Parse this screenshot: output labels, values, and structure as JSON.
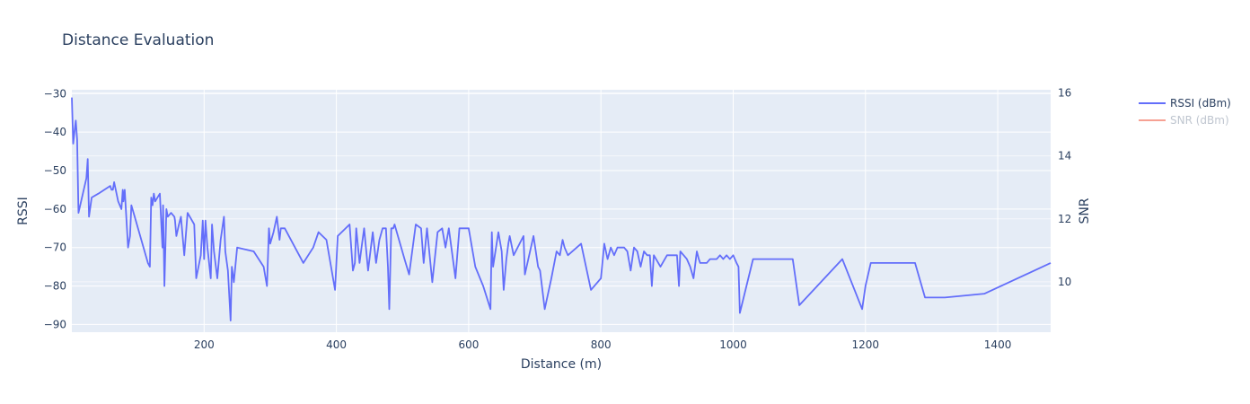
{
  "chart_data": {
    "type": "line",
    "title": "Distance Evaluation",
    "xlabel": "Distance (m)",
    "ylabel": "RSSI",
    "y2label": "SNR",
    "xlim": [
      0,
      1480
    ],
    "ylim": [
      -92,
      -29
    ],
    "y2lim": [
      8.4,
      16.1
    ],
    "xticks": [
      200,
      400,
      600,
      800,
      1000,
      1200,
      1400
    ],
    "yticks": [
      -30,
      -40,
      -50,
      -60,
      -70,
      -80,
      -90
    ],
    "y2ticks": [
      10,
      12,
      14,
      16
    ],
    "grid": true,
    "legend_position": "top-right",
    "series": [
      {
        "name": "RSSI (dBm)",
        "color": "#636efa",
        "visible": true,
        "axis": "y",
        "x": [
          0,
          2,
          4,
          6,
          8,
          10,
          22,
          24,
          26,
          30,
          40,
          58,
          60,
          62,
          64,
          70,
          75,
          77,
          78,
          80,
          85,
          88,
          90,
          95,
          115,
          118,
          120,
          122,
          124,
          126,
          133,
          137,
          138,
          140,
          143,
          145,
          150,
          155,
          156,
          158,
          162,
          165,
          170,
          175,
          185,
          188,
          195,
          198,
          200,
          202,
          205,
          210,
          212,
          215,
          220,
          225,
          230,
          232,
          236,
          240,
          242,
          245,
          250,
          275,
          290,
          295,
          298,
          300,
          305,
          310,
          314,
          316,
          322,
          350,
          365,
          373,
          385,
          398,
          402,
          420,
          425,
          428,
          430,
          435,
          438,
          442,
          448,
          455,
          460,
          465,
          470,
          475,
          478,
          480,
          483,
          486,
          488,
          503,
          510,
          520,
          528,
          532,
          537,
          545,
          553,
          560,
          565,
          570,
          580,
          586,
          600,
          610,
          622,
          633,
          635,
          637,
          645,
          650,
          653,
          657,
          660,
          662,
          668,
          683,
          685,
          698,
          705,
          708,
          715,
          725,
          733,
          738,
          742,
          745,
          750,
          770,
          785,
          800,
          805,
          810,
          815,
          820,
          825,
          830,
          835,
          840,
          845,
          850,
          855,
          860,
          865,
          870,
          874,
          877,
          880,
          890,
          900,
          915,
          918,
          920,
          925,
          930,
          935,
          940,
          945,
          948,
          950,
          955,
          960,
          965,
          970,
          975,
          980,
          985,
          990,
          995,
          1000,
          1005,
          1008,
          1010,
          1030,
          1090,
          1100,
          1165,
          1195,
          1200,
          1208,
          1275,
          1290,
          1320,
          1380,
          1480
        ],
        "values": [
          -31,
          -43,
          -40,
          -37,
          -42,
          -61,
          -52,
          -47,
          -62,
          -57,
          -56,
          -54,
          -55,
          -55,
          -53,
          -58,
          -60,
          -55,
          -58,
          -55,
          -70,
          -67,
          -59,
          -62,
          -74,
          -75,
          -57,
          -59,
          -56,
          -58,
          -56,
          -70,
          -59,
          -80,
          -60,
          -62,
          -61,
          -62,
          -63,
          -67,
          -64,
          -62,
          -72,
          -61,
          -64,
          -78,
          -72,
          -63,
          -73,
          -63,
          -70,
          -78,
          -64,
          -71,
          -78,
          -68,
          -62,
          -71,
          -76,
          -89,
          -75,
          -79,
          -70,
          -71,
          -75,
          -80,
          -65,
          -69,
          -66,
          -62,
          -68,
          -65,
          -65,
          -74,
          -70,
          -66,
          -68,
          -81,
          -67,
          -64,
          -76,
          -74,
          -65,
          -74,
          -70,
          -65,
          -76,
          -66,
          -74,
          -68,
          -65,
          -65,
          -75,
          -86,
          -65,
          -65,
          -64,
          -73,
          -77,
          -64,
          -65,
          -74,
          -65,
          -79,
          -66,
          -65,
          -70,
          -65,
          -78,
          -65,
          -65,
          -75,
          -80,
          -86,
          -66,
          -75,
          -66,
          -71,
          -81,
          -73,
          -69,
          -67,
          -72,
          -67,
          -77,
          -67,
          -75,
          -76,
          -86,
          -78,
          -71,
          -72,
          -68,
          -70,
          -72,
          -69,
          -81,
          -78,
          -69,
          -73,
          -70,
          -72,
          -70,
          -70,
          -70,
          -71,
          -76,
          -70,
          -71,
          -75,
          -71,
          -72,
          -72,
          -80,
          -72,
          -75,
          -72,
          -72,
          -80,
          -71,
          -72,
          -73,
          -75,
          -78,
          -71,
          -73,
          -74,
          -74,
          -74,
          -73,
          -73,
          -73,
          -72,
          -73,
          -72,
          -73,
          -72,
          -74,
          -75,
          -87,
          -73,
          -73,
          -85,
          -73,
          -86,
          -80,
          -74,
          -74,
          -83,
          -83,
          -82,
          -74
        ]
      },
      {
        "name": "SNR (dBm)",
        "color": "#ef553b",
        "visible": false,
        "axis": "y2"
      }
    ]
  }
}
